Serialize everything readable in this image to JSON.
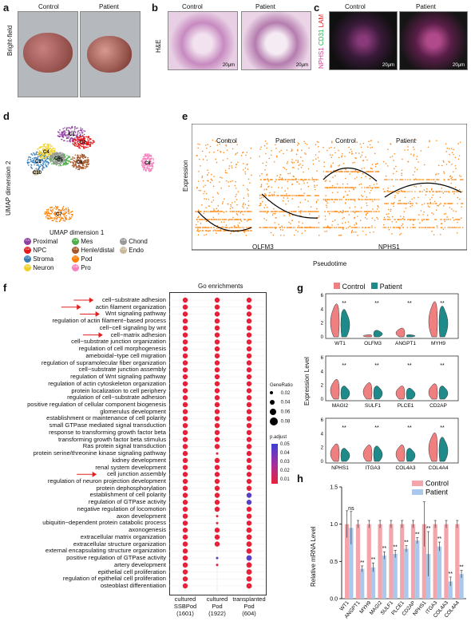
{
  "panels": {
    "a": {
      "letter": "a",
      "control": "Control",
      "patient": "Patient",
      "side": "Bright-field"
    },
    "b": {
      "letter": "b",
      "control": "Control",
      "patient": "Patient",
      "side": "H&E",
      "scale": "20μm"
    },
    "c": {
      "letter": "c",
      "control": "Control",
      "patient": "Patient",
      "side_nphs1": "NPHS1",
      "side_cd31": "CD31",
      "side_lam": "LAM",
      "scale": "20μm",
      "colors": {
        "nphs1": "#d6398f",
        "cd31": "#22b14c",
        "lam": "#e02020"
      }
    },
    "d": {
      "letter": "d",
      "xlabel": "UMAP dimension 1",
      "ylabel": "UMAP dimension 2",
      "clusters": [
        {
          "id": "C1",
          "name": "Proximal",
          "color": "#8e3fa0"
        },
        {
          "id": "C2",
          "name": "NPC",
          "color": "#e41a1c"
        },
        {
          "id": "C3",
          "name": "Stroma",
          "color": "#377eb8"
        },
        {
          "id": "C4",
          "name": "Neuron",
          "color": "#f2d028"
        },
        {
          "id": "C5",
          "name": "Mes",
          "color": "#4daf4a"
        },
        {
          "id": "C6",
          "name": "Henle/distal",
          "color": "#a65628"
        },
        {
          "id": "C7",
          "name": "Pod",
          "color": "#ff7f00"
        },
        {
          "id": "C8",
          "name": "Pro",
          "color": "#f781bf"
        },
        {
          "id": "C9",
          "name": "Chond",
          "color": "#999999"
        },
        {
          "id": "C10",
          "name": "Endo",
          "color": "#c9b89a"
        }
      ]
    },
    "e": {
      "letter": "e",
      "ylabel": "Expression",
      "xlabel": "Pseudotime",
      "groups": [
        "Control",
        "Patient",
        "Control",
        "Patient"
      ],
      "genes": [
        "OLFM3",
        "NPHS1"
      ]
    },
    "f": {
      "letter": "f",
      "title": "Go enrichments",
      "terms": [
        "cell−substrate adhesion",
        "actin filament organization",
        "Wnt signaling pathway",
        "regulation of actin filament−based process",
        "cell−cell signaling by wnt",
        "cell−matrix adhesion",
        "cell−substrate junction organization",
        "regulation of cell morphogenesis",
        "ameboidal−type cell migration",
        "regulation of supramolecular fiber organization",
        "cell−substrate junction assembly",
        "regulation of Wnt signaling pathway",
        "regulation of actin cytoskeleton organization",
        "protein localization to cell periphery",
        "regulation of cell−substrate adhesion",
        "positive regulation of cellular component biogenesis",
        "glomerulus development",
        "establishment or maintenance of cell polarity",
        "small GTPase mediated signal transduction",
        "response to transforming growth factor beta",
        "transforming growth factor beta stimulus",
        "Ras protein signal transduction",
        "protein serine/threonine kinase signaling pathway",
        "kidney development",
        "renal system development",
        "cell junction assembly",
        "regulation of neuron projection development",
        "protein dephosphorylation",
        "establishment of cell polarity",
        "regulation of GTPase activity",
        "negative regulation of locomotion",
        "axon development",
        "ubiquitin−dependent protein catabolic process",
        "axonogenesis",
        "extracellular matrix organization",
        "extracellular structure organization",
        "external encapsulating structure organization",
        "positive regulation of GTPase activity",
        "artery development",
        "epithelial cell proliferation",
        "regulation of epithelial cell proliferation",
        "osteoblast differentiation"
      ],
      "arrows": [
        0,
        1,
        2,
        5,
        25
      ],
      "columns": [
        {
          "l1": "cultured",
          "l2": "SSBPod",
          "l3": "(1601)"
        },
        {
          "l1": "cultured",
          "l2": "Pod",
          "l3": "(1922)"
        },
        {
          "l1": "transplanted",
          "l2": "Pod",
          "l3": "(604)"
        }
      ],
      "legend": {
        "generatio_title": "GeneRatio",
        "generatio": [
          "0.02",
          "0.04",
          "0.06",
          "0.08"
        ],
        "padj_title": "p.adjust",
        "padj": [
          "0.05",
          "0.04",
          "0.03",
          "0.02",
          "0.01"
        ]
      }
    },
    "g": {
      "letter": "g",
      "legend": [
        "Control",
        "Patient"
      ],
      "ylabel": "Expression Level",
      "ticks": [
        "0",
        "2",
        "4",
        "6"
      ],
      "genes": [
        "WT1",
        "OLFM3",
        "ANGPT1",
        "MYH9",
        "MAGI2",
        "SULF1",
        "PLCE1",
        "CD2AP",
        "NPHS1",
        "ITGA3",
        "COL4A3",
        "COL4A4"
      ],
      "sig": "**"
    },
    "h": {
      "letter": "h",
      "ylabel": "Relative mRNA Level",
      "legend": [
        "Control",
        "Patient"
      ],
      "ns": "ns",
      "sig": "**",
      "chart_data": {
        "type": "bar",
        "categories": [
          "WT1",
          "ANGPT1",
          "MYH9",
          "MAGI2",
          "SULF1",
          "PLCE1",
          "CD2AP",
          "NPHS1",
          "ITGA3",
          "COL4A3",
          "COL4A4"
        ],
        "series": [
          {
            "name": "Control",
            "values": [
              1,
              1,
              1,
              1,
              1,
              1,
              1,
              1,
              1,
              1,
              1
            ]
          },
          {
            "name": "Patient",
            "values": [
              0.95,
              0.4,
              0.42,
              0.58,
              0.6,
              0.67,
              0.78,
              0.6,
              0.7,
              0.23,
              0.33
            ]
          }
        ],
        "errors": {
          "Control": [
            0.18,
            0.05,
            0.05,
            0.05,
            0.05,
            0.05,
            0.05,
            0.3,
            0.05,
            0.05,
            0.05
          ],
          "Patient": [
            0.22,
            0.04,
            0.06,
            0.05,
            0.05,
            0.04,
            0.04,
            0.3,
            0.06,
            0.06,
            0.05
          ]
        },
        "yticks": [
          "0.0",
          "0.5",
          "1.0",
          "1.5"
        ],
        "ylim": [
          0,
          1.5
        ],
        "colors": {
          "Control": "#f4a5ab",
          "Patient": "#a9c8ec"
        }
      }
    }
  }
}
